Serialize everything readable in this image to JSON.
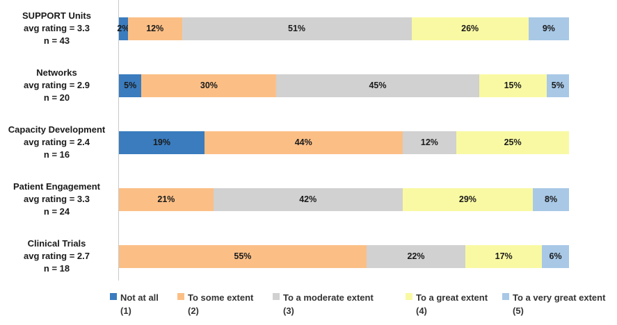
{
  "chart_data": {
    "type": "bar",
    "orientation": "horizontal",
    "stacked": true,
    "value_unit": "percent",
    "xlim": [
      0,
      100
    ],
    "grid": false,
    "legend_position": "bottom",
    "axis_line_color": "#c9c9c9",
    "categories": [
      "SUPPORT Units",
      "Networks",
      "Capacity Development",
      "Patient Engagement",
      "Clinical Trials"
    ],
    "series": [
      {
        "name": "Not at all",
        "scale_number": "(1)",
        "color": "#3a7cbe",
        "values": [
          2,
          5,
          19,
          0,
          0
        ]
      },
      {
        "name": "To some extent",
        "scale_number": "(2)",
        "color": "#fbbf86",
        "values": [
          12,
          30,
          44,
          21,
          55
        ]
      },
      {
        "name": "To a moderate extent",
        "scale_number": "(3)",
        "color": "#d1d1d1",
        "values": [
          51,
          45,
          12,
          42,
          22
        ]
      },
      {
        "name": "To a great extent",
        "scale_number": "(4)",
        "color": "#f9f9a3",
        "values": [
          26,
          15,
          25,
          29,
          17
        ]
      },
      {
        "name": "To a very great extent",
        "scale_number": "(5)",
        "color": "#a8c8e6",
        "values": [
          9,
          5,
          0,
          8,
          6
        ]
      }
    ],
    "rows": [
      {
        "name": "SUPPORT Units",
        "avg_label": "avg rating = 3.3",
        "n_label": "n = 43",
        "values": [
          2,
          12,
          51,
          26,
          9
        ],
        "value_labels": [
          "2%",
          "12%",
          "51%",
          "26%",
          "9%"
        ]
      },
      {
        "name": "Networks",
        "avg_label": "avg rating = 2.9",
        "n_label": "n = 20",
        "values": [
          5,
          30,
          45,
          15,
          5
        ],
        "value_labels": [
          "5%",
          "30%",
          "45%",
          "15%",
          "5%"
        ]
      },
      {
        "name": "Capacity Development",
        "avg_label": "avg rating = 2.4",
        "n_label": "n = 16",
        "values": [
          19,
          44,
          12,
          25,
          0
        ],
        "value_labels": [
          "19%",
          "44%",
          "12%",
          "25%",
          ""
        ]
      },
      {
        "name": "Patient Engagement",
        "avg_label": "avg rating = 3.3",
        "n_label": "n = 24",
        "values": [
          0,
          21,
          42,
          29,
          8
        ],
        "value_labels": [
          "",
          "21%",
          "42%",
          "29%",
          "8%"
        ]
      },
      {
        "name": "Clinical Trials",
        "avg_label": "avg rating = 2.7",
        "n_label": "n = 18",
        "values": [
          0,
          55,
          22,
          17,
          6
        ],
        "value_labels": [
          "",
          "55%",
          "22%",
          "17%",
          "6%"
        ]
      }
    ],
    "legend": [
      {
        "label": "Not at all",
        "number": "(1)"
      },
      {
        "label": "To some extent",
        "number": "(2)"
      },
      {
        "label": "To a moderate extent",
        "number": "(3)"
      },
      {
        "label": "To a great extent",
        "number": "(4)"
      },
      {
        "label": "To a very great extent",
        "number": "(5)"
      }
    ]
  }
}
